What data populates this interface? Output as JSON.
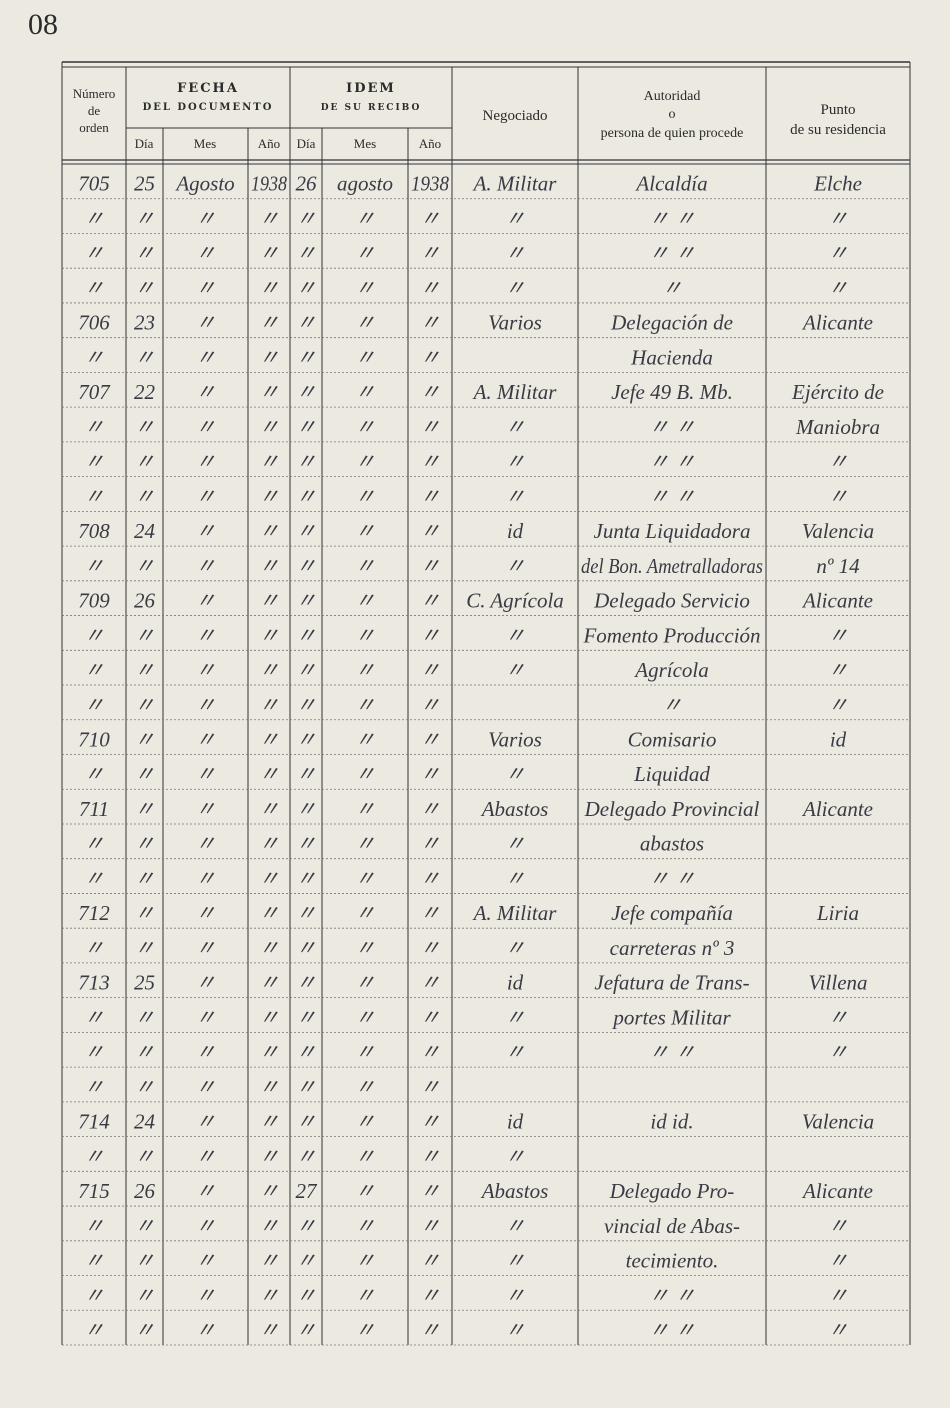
{
  "page_number": "08",
  "header": {
    "number": [
      "Número",
      "de",
      "orden"
    ],
    "fecha": {
      "title": "FECHA",
      "subtitle": "DEL DOCUMENTO",
      "day": "Día",
      "month": "Mes",
      "year": "Año"
    },
    "idem": {
      "title": "IDEM",
      "subtitle": "DE SU RECIBO",
      "day": "Día",
      "month": "Mes",
      "year": "Año"
    },
    "negociado": "Negociado",
    "autoridad": [
      "Autoridad",
      "o",
      "persona de quien procede"
    ],
    "punto": [
      "Punto",
      "de su residencia"
    ]
  },
  "table": {
    "rows": [
      [
        "705",
        "25",
        "Agosto",
        "1938",
        "26",
        "agosto",
        "1938",
        "A. Militar",
        "Alcaldía",
        "Elche"
      ],
      [
        "〃",
        "〃",
        "〃",
        "〃",
        "〃",
        "〃",
        "〃",
        "〃",
        "〃 〃",
        "〃"
      ],
      [
        "〃",
        "〃",
        "〃",
        "〃",
        "〃",
        "〃",
        "〃",
        "〃",
        "〃 〃",
        "〃"
      ],
      [
        "〃",
        "〃",
        "〃",
        "〃",
        "〃",
        "〃",
        "〃",
        "〃",
        "〃",
        "〃"
      ],
      [
        "706",
        "23",
        "〃",
        "〃",
        "〃",
        "〃",
        "〃",
        "Varios",
        "Delegación de",
        "Alicante"
      ],
      [
        "〃",
        "〃",
        "〃",
        "〃",
        "〃",
        "〃",
        "〃",
        null,
        "Hacienda",
        null
      ],
      [
        "707",
        "22",
        "〃",
        "〃",
        "〃",
        "〃",
        "〃",
        "A. Militar",
        "Jefe 49 B. Mb.",
        "Ejército de"
      ],
      [
        "〃",
        "〃",
        "〃",
        "〃",
        "〃",
        "〃",
        "〃",
        "〃",
        "〃 〃",
        "Maniobra"
      ],
      [
        "〃",
        "〃",
        "〃",
        "〃",
        "〃",
        "〃",
        "〃",
        "〃",
        "〃 〃",
        "〃"
      ],
      [
        "〃",
        "〃",
        "〃",
        "〃",
        "〃",
        "〃",
        "〃",
        "〃",
        "〃 〃",
        "〃"
      ],
      [
        "708",
        "24",
        "〃",
        "〃",
        "〃",
        "〃",
        "〃",
        "id",
        "Junta Liquidadora",
        "Valencia"
      ],
      [
        "〃",
        "〃",
        "〃",
        "〃",
        "〃",
        "〃",
        "〃",
        "〃",
        "del Bon. Ametralladoras",
        "nº 14"
      ],
      [
        "709",
        "26",
        "〃",
        "〃",
        "〃",
        "〃",
        "〃",
        "C. Agrícola",
        "Delegado Servicio",
        "Alicante"
      ],
      [
        "〃",
        "〃",
        "〃",
        "〃",
        "〃",
        "〃",
        "〃",
        "〃",
        "Fomento Producción",
        "〃"
      ],
      [
        "〃",
        "〃",
        "〃",
        "〃",
        "〃",
        "〃",
        "〃",
        "〃",
        "Agrícola",
        "〃"
      ],
      [
        "〃",
        "〃",
        "〃",
        "〃",
        "〃",
        "〃",
        "〃",
        null,
        "〃",
        "〃"
      ],
      [
        "710",
        "〃",
        "〃",
        "〃",
        "〃",
        "〃",
        "〃",
        "Varios",
        "Comisario",
        "id"
      ],
      [
        "〃",
        "〃",
        "〃",
        "〃",
        "〃",
        "〃",
        "〃",
        "〃",
        "Liquidad",
        null
      ],
      [
        "711",
        "〃",
        "〃",
        "〃",
        "〃",
        "〃",
        "〃",
        "Abastos",
        "Delegado Provincial",
        "Alicante"
      ],
      [
        "〃",
        "〃",
        "〃",
        "〃",
        "〃",
        "〃",
        "〃",
        "〃",
        "abastos",
        null
      ],
      [
        "〃",
        "〃",
        "〃",
        "〃",
        "〃",
        "〃",
        "〃",
        "〃",
        "〃 〃",
        null
      ],
      [
        "712",
        "〃",
        "〃",
        "〃",
        "〃",
        "〃",
        "〃",
        "A. Militar",
        "Jefe compañía",
        "Liria"
      ],
      [
        "〃",
        "〃",
        "〃",
        "〃",
        "〃",
        "〃",
        "〃",
        "〃",
        "carreteras nº 3",
        null
      ],
      [
        "713",
        "25",
        "〃",
        "〃",
        "〃",
        "〃",
        "〃",
        "id",
        "Jefatura de Trans-",
        "Villena"
      ],
      [
        "〃",
        "〃",
        "〃",
        "〃",
        "〃",
        "〃",
        "〃",
        "〃",
        "portes Militar",
        "〃"
      ],
      [
        "〃",
        "〃",
        "〃",
        "〃",
        "〃",
        "〃",
        "〃",
        "〃",
        "〃 〃",
        "〃"
      ],
      [
        "〃",
        "〃",
        "〃",
        "〃",
        "〃",
        "〃",
        "〃",
        null,
        null,
        null
      ],
      [
        "714",
        "24",
        "〃",
        "〃",
        "〃",
        "〃",
        "〃",
        "id",
        "id id.",
        "Valencia"
      ],
      [
        "〃",
        "〃",
        "〃",
        "〃",
        "〃",
        "〃",
        "〃",
        "〃",
        null,
        null
      ],
      [
        "715",
        "26",
        "〃",
        "〃",
        "27",
        "〃",
        "〃",
        "Abastos",
        "Delegado Pro-",
        "Alicante"
      ],
      [
        "〃",
        "〃",
        "〃",
        "〃",
        "〃",
        "〃",
        "〃",
        "〃",
        "vincial de Abas-",
        "〃"
      ],
      [
        "〃",
        "〃",
        "〃",
        "〃",
        "〃",
        "〃",
        "〃",
        "〃",
        "tecimiento.",
        "〃"
      ],
      [
        "〃",
        "〃",
        "〃",
        "〃",
        "〃",
        "〃",
        "〃",
        "〃",
        "〃 〃",
        "〃"
      ],
      [
        "〃",
        "〃",
        "〃",
        "〃",
        "〃",
        "〃",
        "〃",
        "〃",
        "〃 〃",
        "〃"
      ]
    ]
  }
}
